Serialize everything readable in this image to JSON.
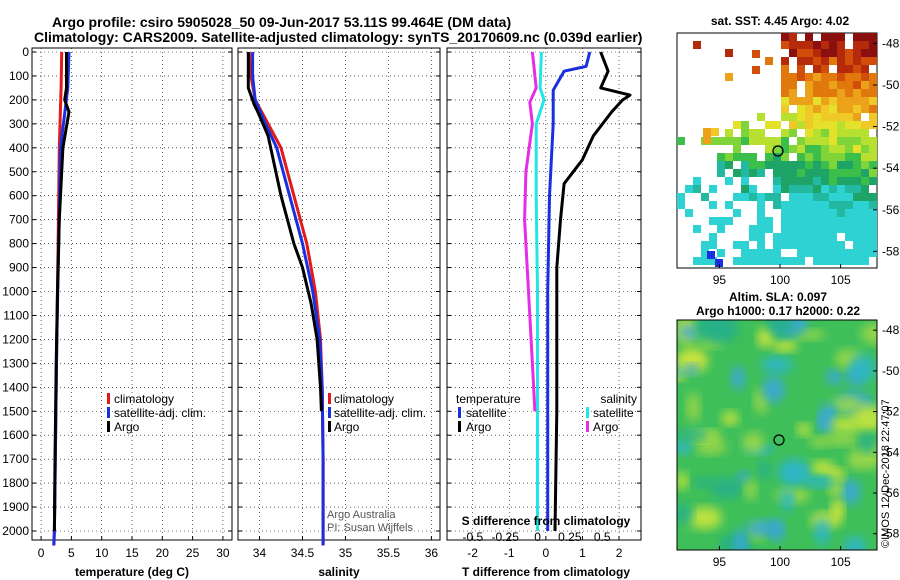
{
  "titles": {
    "line1": "Argo profile: csiro 5905028_50 09-Jun-2017 53.11S 99.464E (DM data)",
    "line2": "Climatology: CARS2009. Satellite-adjusted climatology: synTS_20170609.nc (0.039d earlier)"
  },
  "colors": {
    "climatology": "#e21a1a",
    "satellite": "#1a2fe0",
    "argo": "#000000",
    "sat_salinity": "#22e6e6",
    "argo_salinity": "#e62ee6"
  },
  "chart_data": [
    {
      "type": "line",
      "id": "temperature",
      "xlabel": "temperature (deg C)",
      "ylabel": "",
      "xlim": [
        -1.5,
        31.5
      ],
      "ylim": [
        2080,
        0
      ],
      "xticks": [
        "0",
        "5",
        "10",
        "15",
        "20",
        "25",
        "30"
      ],
      "yticks": [
        "0",
        "100",
        "200",
        "300",
        "400",
        "500",
        "600",
        "700",
        "800",
        "900",
        "1000",
        "1100",
        "1200",
        "1300",
        "1400",
        "1500",
        "1600",
        "1700",
        "1800",
        "1900",
        "2000"
      ],
      "legend": [
        "climatology",
        "satellite-adj. clim.",
        "Argo"
      ],
      "series": [
        {
          "name": "climatology",
          "color": "#e21a1a",
          "points": [
            [
              3.4,
              0
            ],
            [
              3.3,
              150
            ],
            [
              3.0,
              400
            ],
            [
              2.8,
              800
            ],
            [
              2.6,
              1200
            ],
            [
              2.4,
              1600
            ],
            [
              2.2,
              2000
            ],
            [
              2.1,
              2060
            ]
          ]
        },
        {
          "name": "satellite-adj. clim.",
          "color": "#1a2fe0",
          "points": [
            [
              4.6,
              0
            ],
            [
              4.4,
              150
            ],
            [
              3.2,
              400
            ],
            [
              2.9,
              800
            ],
            [
              2.6,
              1200
            ],
            [
              2.4,
              1600
            ],
            [
              2.2,
              2000
            ],
            [
              2.1,
              2060
            ]
          ]
        },
        {
          "name": "Argo",
          "color": "#000000",
          "points": [
            [
              4.2,
              0
            ],
            [
              4.2,
              150
            ],
            [
              3.9,
              200
            ],
            [
              4.6,
              250
            ],
            [
              3.6,
              400
            ],
            [
              3.0,
              700
            ],
            [
              2.7,
              1000
            ],
            [
              2.5,
              1300
            ],
            [
              2.4,
              1500
            ],
            [
              2.3,
              1700
            ],
            [
              2.2,
              2000
            ]
          ]
        }
      ]
    },
    {
      "type": "line",
      "id": "salinity",
      "xlabel": "salinity",
      "xlim": [
        33.75,
        36.1
      ],
      "ylim": [
        2080,
        0
      ],
      "xticks": [
        "34",
        "34.5",
        "35",
        "35.5",
        "36"
      ],
      "legend": [
        "climatology",
        "satellite-adj. clim.",
        "Argo"
      ],
      "series": [
        {
          "name": "climatology",
          "color": "#e21a1a",
          "points": [
            [
              33.88,
              0
            ],
            [
              33.9,
              100
            ],
            [
              33.95,
              200
            ],
            [
              34.1,
              300
            ],
            [
              34.25,
              400
            ],
            [
              34.4,
              600
            ],
            [
              34.55,
              800
            ],
            [
              34.65,
              1000
            ],
            [
              34.71,
              1200
            ],
            [
              34.73,
              1400
            ],
            [
              34.74,
              1700
            ],
            [
              34.74,
              2000
            ],
            [
              34.74,
              2060
            ]
          ]
        },
        {
          "name": "satellite-adj. clim.",
          "color": "#1a2fe0",
          "points": [
            [
              33.92,
              0
            ],
            [
              33.92,
              100
            ],
            [
              33.95,
              200
            ],
            [
              34.07,
              300
            ],
            [
              34.2,
              400
            ],
            [
              34.35,
              600
            ],
            [
              34.5,
              800
            ],
            [
              34.62,
              1000
            ],
            [
              34.7,
              1200
            ],
            [
              34.73,
              1400
            ],
            [
              34.74,
              1700
            ],
            [
              34.74,
              2000
            ],
            [
              34.74,
              2060
            ]
          ]
        },
        {
          "name": "Argo",
          "color": "#000000",
          "points": [
            [
              33.87,
              0
            ],
            [
              33.87,
              150
            ],
            [
              33.94,
              220
            ],
            [
              33.98,
              250
            ],
            [
              34.1,
              350
            ],
            [
              34.25,
              600
            ],
            [
              34.4,
              800
            ],
            [
              34.5,
              900
            ],
            [
              34.6,
              1050
            ],
            [
              34.67,
              1200
            ],
            [
              34.71,
              1400
            ],
            [
              34.72,
              1500
            ]
          ]
        }
      ]
    },
    {
      "type": "line",
      "id": "difference",
      "xlabel": "T difference from climatology",
      "xlabel_top": "S difference from climatology",
      "xlim": [
        -2.7,
        2.6
      ],
      "xlim_top": [
        -0.7,
        0.8
      ],
      "ylim": [
        2080,
        0
      ],
      "xticks": [
        "-2",
        "-1",
        "0",
        "1",
        "2"
      ],
      "xticks_top": [
        "-0.5",
        "-0.25",
        "0",
        "0.25",
        "0.5"
      ],
      "legend_left_title": "temperature",
      "legend_right_title": "salinity",
      "legend_left": [
        "satellite",
        "Argo"
      ],
      "legend_right": [
        "satellite",
        "Argo"
      ],
      "series": [
        {
          "name": "temperature satellite",
          "color": "#1a2fe0",
          "points": [
            [
              1.2,
              0
            ],
            [
              1.1,
              60
            ],
            [
              0.5,
              80
            ],
            [
              0.2,
              160
            ],
            [
              0.2,
              300
            ],
            [
              0.1,
              600
            ],
            [
              0.05,
              1000
            ],
            [
              0.05,
              1500
            ],
            [
              0.05,
              2000
            ]
          ]
        },
        {
          "name": "temperature Argo",
          "color": "#000000",
          "points": [
            [
              1.5,
              0
            ],
            [
              1.7,
              80
            ],
            [
              1.5,
              150
            ],
            [
              2.3,
              180
            ],
            [
              2.1,
              200
            ],
            [
              1.8,
              250
            ],
            [
              1.3,
              350
            ],
            [
              1.0,
              450
            ],
            [
              0.5,
              550
            ],
            [
              0.4,
              700
            ],
            [
              0.3,
              900
            ],
            [
              0.3,
              1200
            ],
            [
              0.3,
              1500
            ],
            [
              0.25,
              2000
            ]
          ]
        },
        {
          "name": "salinity satellite",
          "color": "#22e6e6",
          "points": [
            [
              0.03,
              0
            ],
            [
              0.02,
              150
            ],
            [
              0.05,
              200
            ],
            [
              -0.01,
              300
            ],
            [
              -0.01,
              600
            ],
            [
              -0.0,
              1000
            ],
            [
              -0.0,
              1500
            ],
            [
              0.0,
              2000
            ]
          ]
        },
        {
          "name": "salinity Argo",
          "color": "#e62ee6",
          "points": [
            [
              -0.04,
              0
            ],
            [
              -0.01,
              150
            ],
            [
              -0.06,
              210
            ],
            [
              -0.04,
              300
            ],
            [
              -0.09,
              500
            ],
            [
              -0.1,
              700
            ],
            [
              -0.08,
              900
            ],
            [
              -0.06,
              1100
            ],
            [
              -0.04,
              1300
            ],
            [
              -0.02,
              1500
            ]
          ]
        }
      ]
    }
  ],
  "maps": {
    "sst": {
      "title": "sat. SST: 4.45 Argo: 4.02",
      "yticks": [
        "-48",
        "-50",
        "-52",
        "-54",
        "-56",
        "-58"
      ],
      "xticks": [
        "95",
        "100",
        "105"
      ]
    },
    "sla": {
      "title1": "Altim. SLA: 0.097",
      "title2": "Argo h1000: 0.17 h2000: 0.22",
      "yticks": [
        "-48",
        "-50",
        "-52",
        "-54",
        "-56",
        "-58"
      ],
      "xticks": [
        "95",
        "100",
        "105"
      ]
    }
  },
  "credits": {
    "line1": "Argo Australia",
    "line2": "PI: Susan Wijffels",
    "stamp": "©IMOS 12-Dec-2018 22:47:07"
  }
}
